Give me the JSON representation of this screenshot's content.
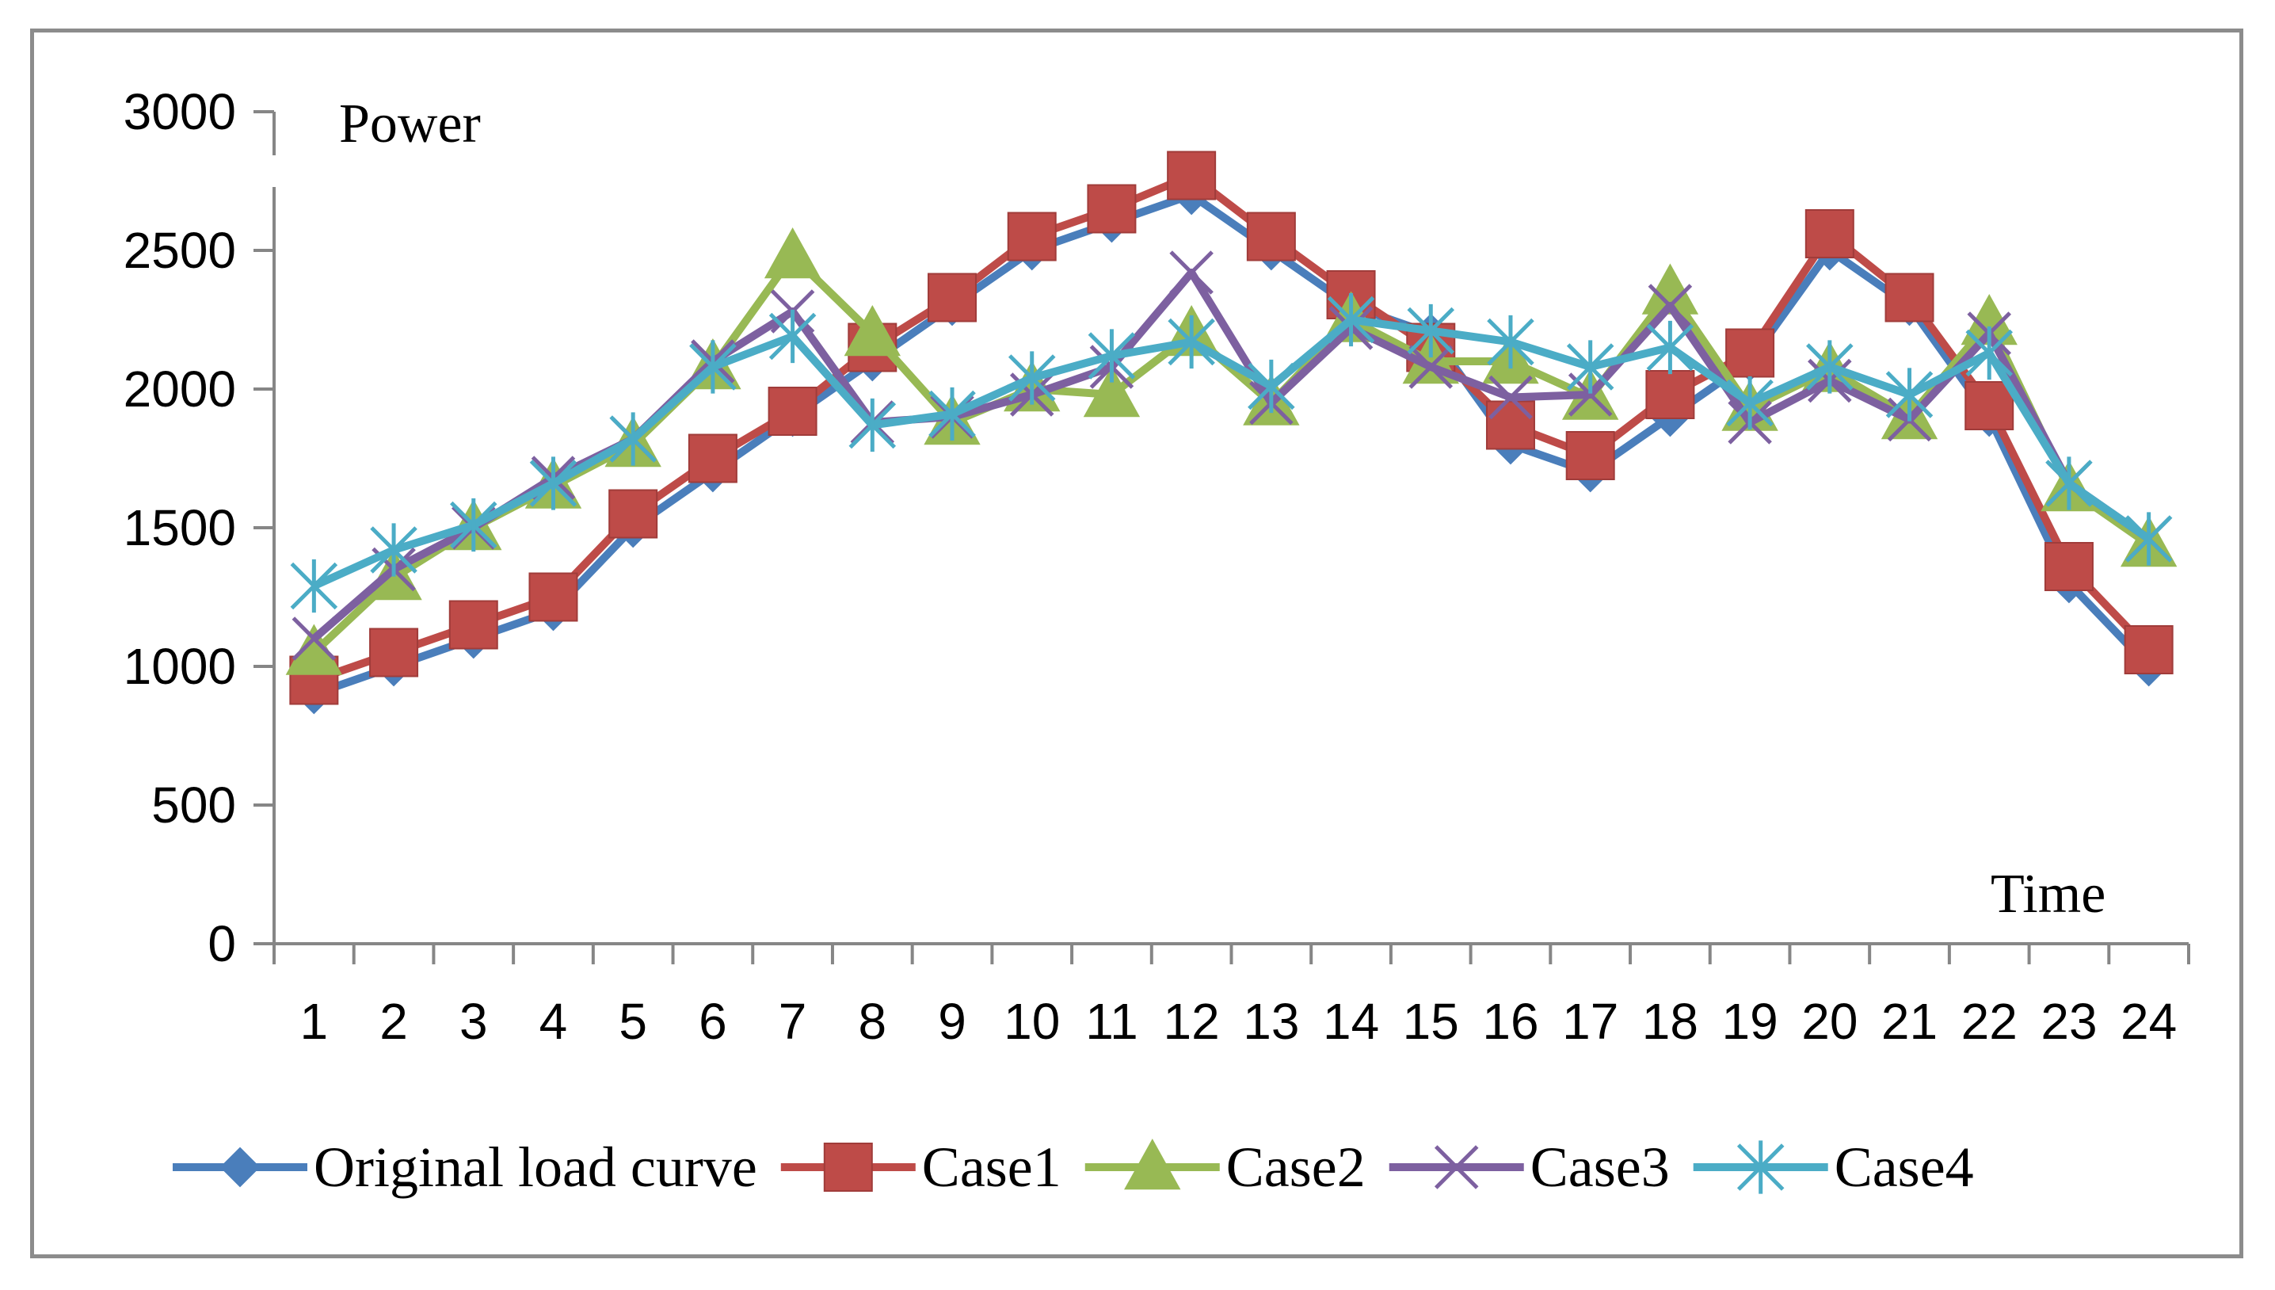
{
  "chart_data": {
    "type": "line",
    "title": "",
    "xlabel": "Time",
    "ylabel": "Power",
    "categories": [
      "1",
      "2",
      "3",
      "4",
      "5",
      "6",
      "7",
      "8",
      "9",
      "10",
      "11",
      "12",
      "13",
      "14",
      "15",
      "16",
      "17",
      "18",
      "19",
      "20",
      "21",
      "22",
      "23",
      "24"
    ],
    "ylim": [
      0,
      3000
    ],
    "yticks": [
      "0",
      "500",
      "1000",
      "1500",
      "2000",
      "2500",
      "3000"
    ],
    "legend_position": "bottom",
    "series": [
      {
        "name": "Original load curve",
        "color": "#4a7ebb",
        "marker": "diamond",
        "values": [
          900,
          1000,
          1100,
          1200,
          1500,
          1700,
          1900,
          2100,
          2300,
          2500,
          2600,
          2700,
          2500,
          2300,
          2200,
          1800,
          1700,
          1900,
          2100,
          2500,
          2300,
          1900,
          1300,
          1000
        ]
      },
      {
        "name": "Case1",
        "color": "#be4b48",
        "marker": "square",
        "values": [
          950,
          1050,
          1150,
          1250,
          1550,
          1750,
          1920,
          2150,
          2330,
          2550,
          2650,
          2770,
          2550,
          2340,
          2150,
          1870,
          1760,
          1980,
          2130,
          2560,
          2330,
          1940,
          1360,
          1060
        ]
      },
      {
        "name": "Case2",
        "color": "#98b954",
        "marker": "triangle",
        "values": [
          1050,
          1320,
          1500,
          1650,
          1800,
          2080,
          2480,
          2200,
          1880,
          2000,
          1980,
          2200,
          1950,
          2250,
          2100,
          2100,
          1970,
          2350,
          1930,
          2070,
          1900,
          2240,
          1640,
          1440
        ]
      },
      {
        "name": "Case3",
        "color": "#7d60a0",
        "marker": "x",
        "values": [
          1100,
          1350,
          1500,
          1680,
          1820,
          2100,
          2280,
          1880,
          1900,
          1980,
          2080,
          2420,
          1950,
          2220,
          2080,
          1970,
          1980,
          2300,
          1880,
          2030,
          1890,
          2200,
          1660,
          1460
        ]
      },
      {
        "name": "Case4",
        "color": "#4bacc6",
        "marker": "star",
        "values": [
          1290,
          1420,
          1510,
          1660,
          1820,
          2080,
          2190,
          1870,
          1910,
          2040,
          2120,
          2170,
          2010,
          2250,
          2210,
          2170,
          2080,
          2150,
          1950,
          2080,
          1980,
          2130,
          1660,
          1460
        ]
      }
    ]
  }
}
